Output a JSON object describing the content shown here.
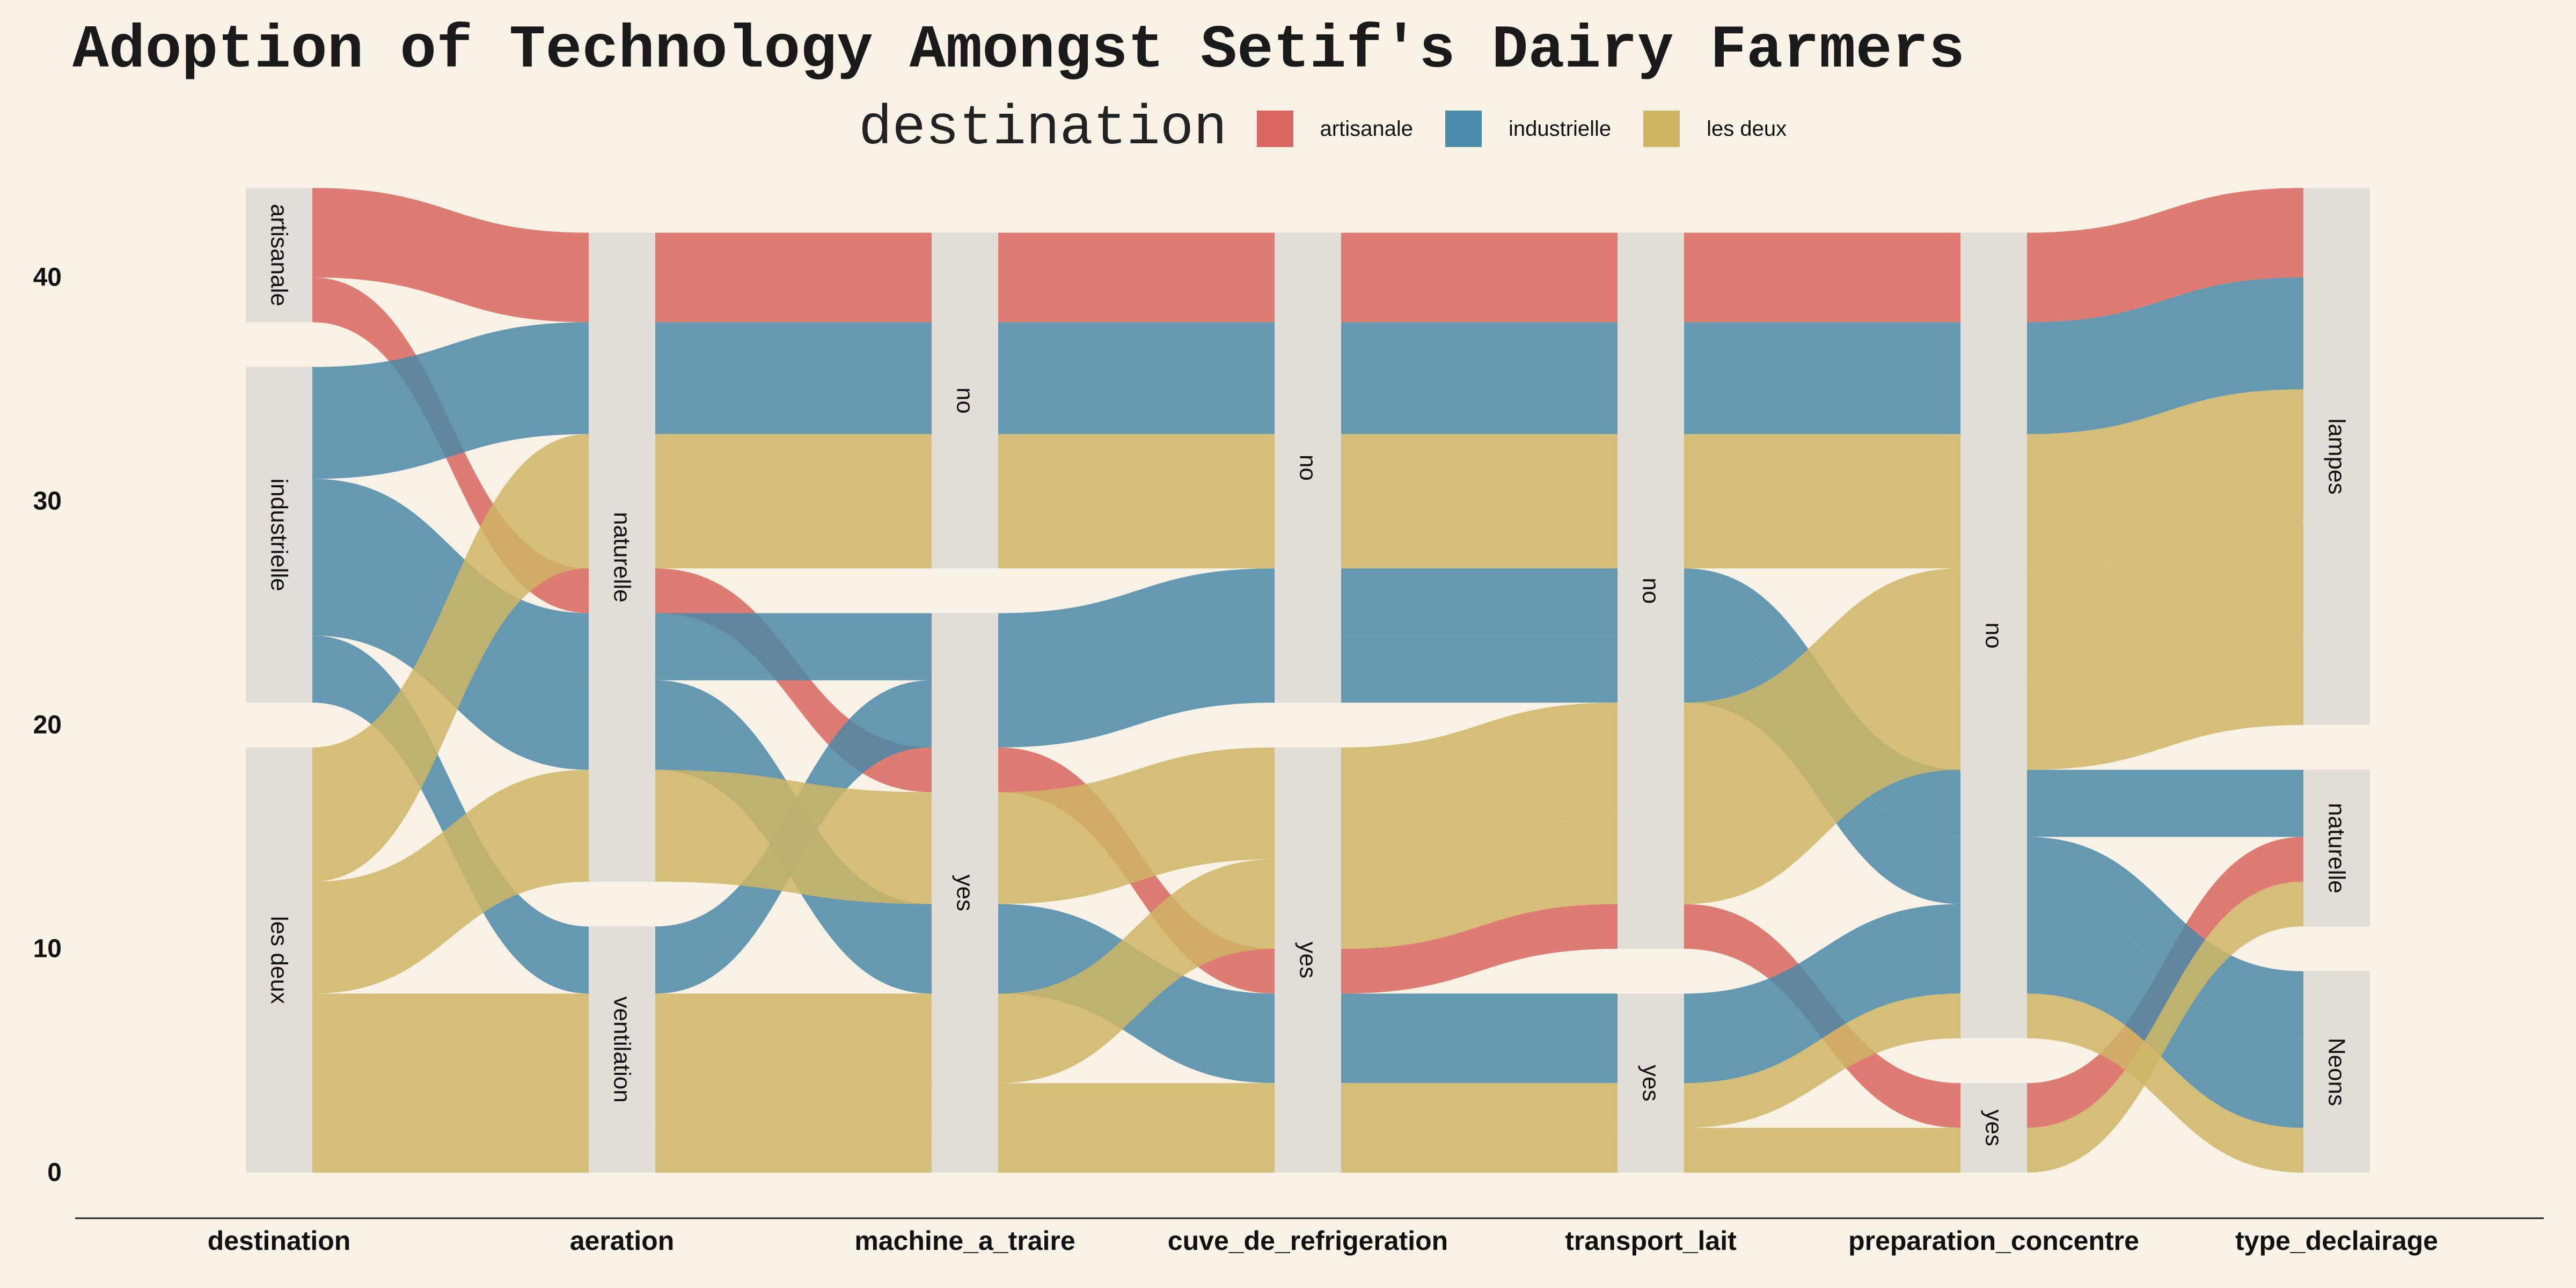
{
  "title": "Adoption of Technology Amongst Setif's Dairy Farmers",
  "legend": {
    "title": "destination",
    "items": [
      {
        "label": "artisanale",
        "color": "#d9675f"
      },
      {
        "label": "industrielle",
        "color": "#4b8aa8"
      },
      {
        "label": "les deux",
        "color": "#cfb565"
      }
    ]
  },
  "chart_data": {
    "type": "alluvial",
    "total": 40,
    "ylim": [
      0,
      42
    ],
    "yticks": [
      0,
      10,
      20,
      30,
      40
    ],
    "axes": [
      {
        "name": "destination",
        "strata": [
          "les deux",
          "industrielle",
          "artisanale"
        ]
      },
      {
        "name": "aeration",
        "strata": [
          "ventilation",
          "naturelle"
        ]
      },
      {
        "name": "machine_a_traire",
        "strata": [
          "yes",
          "no"
        ]
      },
      {
        "name": "cuve_de_refrigeration",
        "strata": [
          "yes",
          "no"
        ]
      },
      {
        "name": "transport_lait",
        "strata": [
          "yes",
          "no"
        ]
      },
      {
        "name": "preparation_concentre",
        "strata": [
          "yes",
          "no"
        ]
      },
      {
        "name": "type_declairage",
        "strata": [
          "Neons",
          "naturelle",
          "lampes"
        ]
      }
    ],
    "flows": [
      {
        "fill": "artisanale",
        "count": 4,
        "path": [
          "artisanale",
          "naturelle",
          "no",
          "no",
          "no",
          "no",
          "lampes"
        ]
      },
      {
        "fill": "artisanale",
        "count": 2,
        "path": [
          "artisanale",
          "naturelle",
          "yes",
          "yes",
          "no",
          "yes",
          "naturelle"
        ]
      },
      {
        "fill": "industrielle",
        "count": 5,
        "path": [
          "industrielle",
          "naturelle",
          "no",
          "no",
          "no",
          "no",
          "lampes"
        ]
      },
      {
        "fill": "industrielle",
        "count": 3,
        "path": [
          "industrielle",
          "naturelle",
          "yes",
          "no",
          "no",
          "no",
          "naturelle"
        ]
      },
      {
        "fill": "industrielle",
        "count": 4,
        "path": [
          "industrielle",
          "naturelle",
          "yes",
          "yes",
          "yes",
          "no",
          "Neons"
        ]
      },
      {
        "fill": "industrielle",
        "count": 3,
        "path": [
          "industrielle",
          "ventilation",
          "yes",
          "no",
          "no",
          "no",
          "Neons"
        ]
      },
      {
        "fill": "les deux",
        "count": 6,
        "path": [
          "les deux",
          "naturelle",
          "no",
          "no",
          "no",
          "no",
          "lampes"
        ]
      },
      {
        "fill": "les deux",
        "count": 5,
        "path": [
          "les deux",
          "naturelle",
          "yes",
          "yes",
          "no",
          "no",
          "lampes"
        ]
      },
      {
        "fill": "les deux",
        "count": 4,
        "path": [
          "les deux",
          "ventilation",
          "yes",
          "yes",
          "no",
          "no",
          "lampes"
        ]
      },
      {
        "fill": "les deux",
        "count": 2,
        "path": [
          "les deux",
          "ventilation",
          "yes",
          "yes",
          "yes",
          "no",
          "Neons"
        ]
      },
      {
        "fill": "les deux",
        "count": 2,
        "path": [
          "les deux",
          "ventilation",
          "yes",
          "yes",
          "yes",
          "yes",
          "naturelle"
        ]
      }
    ]
  }
}
